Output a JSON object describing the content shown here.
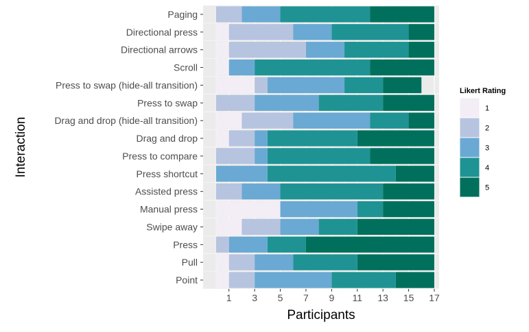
{
  "chart_data": {
    "type": "bar",
    "stacked": true,
    "orientation": "horizontal",
    "xlabel": "Participants",
    "ylabel": "Interaction",
    "xlim": [
      0,
      17
    ],
    "x_ticks": [
      1,
      3,
      5,
      7,
      9,
      11,
      13,
      15,
      17
    ],
    "grid": true,
    "legend": {
      "title": "Likert Rating",
      "placement": "right",
      "entries": [
        "1",
        "2",
        "3",
        "4",
        "5"
      ]
    },
    "colors": [
      "#f3eef6",
      "#b7c4e0",
      "#6aa9d3",
      "#1f9393",
      "#00705c"
    ],
    "categories": [
      "Paging",
      "Directional press",
      "Directional arrows",
      "Scroll",
      "Press to swap (hide-all transition)",
      "Press to swap",
      "Drag and drop (hide-all transition)",
      "Drag and drop",
      "Press to compare",
      "Press shortcut",
      "Assisted press",
      "Manual press",
      "Swipe away",
      "Press",
      "Pull",
      "Point"
    ],
    "series": [
      {
        "name": "1",
        "values": [
          0,
          1,
          1,
          1,
          3,
          0,
          2,
          1,
          0,
          0,
          0,
          5,
          2,
          0,
          1,
          1
        ]
      },
      {
        "name": "2",
        "values": [
          2,
          5,
          6,
          0,
          1,
          3,
          4,
          2,
          3,
          0,
          2,
          0,
          3,
          1,
          2,
          2
        ]
      },
      {
        "name": "3",
        "values": [
          3,
          3,
          3,
          2,
          6,
          5,
          6,
          1,
          1,
          4,
          3,
          6,
          3,
          3,
          3,
          6
        ]
      },
      {
        "name": "4",
        "values": [
          7,
          6,
          5,
          9,
          3,
          5,
          3,
          7,
          8,
          10,
          8,
          2,
          3,
          3,
          5,
          5
        ]
      },
      {
        "name": "5",
        "values": [
          5,
          2,
          2,
          5,
          3,
          4,
          2,
          6,
          5,
          3,
          4,
          4,
          6,
          10,
          6,
          3
        ]
      }
    ]
  }
}
